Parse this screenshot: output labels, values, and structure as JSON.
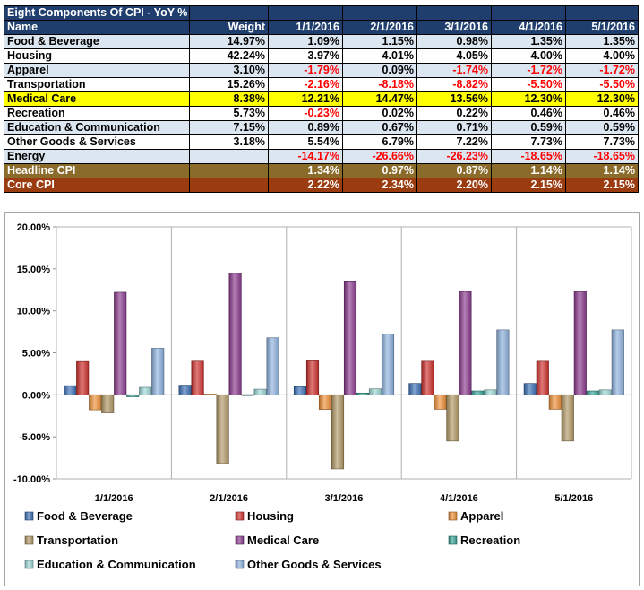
{
  "table": {
    "title": "Eight Components Of CPI - YoY % Change",
    "headers": [
      "Name",
      "Weight",
      "1/1/2016",
      "2/1/2016",
      "3/1/2016",
      "4/1/2016",
      "5/1/2016"
    ],
    "rows": [
      {
        "name": "Food & Beverage",
        "weight": "14.97%",
        "values": [
          "1.09%",
          "1.15%",
          "0.98%",
          "1.35%",
          "1.35%"
        ]
      },
      {
        "name": "Housing",
        "weight": "42.24%",
        "values": [
          "3.97%",
          "4.01%",
          "4.05%",
          "4.00%",
          "4.00%"
        ]
      },
      {
        "name": "Apparel",
        "weight": "3.10%",
        "values": [
          "-1.79%",
          "0.09%",
          "-1.74%",
          "-1.72%",
          "-1.72%"
        ]
      },
      {
        "name": "Transportation",
        "weight": "15.26%",
        "values": [
          "-2.16%",
          "-8.18%",
          "-8.82%",
          "-5.50%",
          "-5.50%"
        ]
      },
      {
        "name": "Medical Care",
        "weight": "8.38%",
        "values": [
          "12.21%",
          "14.47%",
          "13.56%",
          "12.30%",
          "12.30%"
        ],
        "highlight": true
      },
      {
        "name": "Recreation",
        "weight": "5.73%",
        "values": [
          "-0.23%",
          "0.02%",
          "0.22%",
          "0.46%",
          "0.46%"
        ]
      },
      {
        "name": "Education & Communication",
        "weight": "7.15%",
        "values": [
          "0.89%",
          "0.67%",
          "0.71%",
          "0.59%",
          "0.59%"
        ]
      },
      {
        "name": "Other Goods & Services",
        "weight": "3.18%",
        "values": [
          "5.54%",
          "6.79%",
          "7.22%",
          "7.73%",
          "7.73%"
        ]
      },
      {
        "name": "Energy",
        "weight": "",
        "values": [
          "-14.17%",
          "-26.66%",
          "-26.23%",
          "-18.65%",
          "-18.65%"
        ]
      }
    ],
    "summary": [
      {
        "name": "Headline CPI",
        "weight": "",
        "values": [
          "1.34%",
          "0.97%",
          "0.87%",
          "1.14%",
          "1.14%"
        ]
      },
      {
        "name": "Core CPI",
        "weight": "",
        "values": [
          "2.22%",
          "2.34%",
          "2.20%",
          "2.15%",
          "2.15%"
        ]
      }
    ]
  },
  "chart_data": {
    "type": "bar",
    "title": "",
    "xlabel": "",
    "ylabel": "",
    "categories": [
      "1/1/2016",
      "2/1/2016",
      "3/1/2016",
      "4/1/2016",
      "5/1/2016"
    ],
    "ylim": [
      -10,
      20
    ],
    "yticks": [
      -10,
      -5,
      0,
      5,
      10,
      15,
      20
    ],
    "ytick_labels": [
      "-10.00%",
      "-5.00%",
      "0.00%",
      "5.00%",
      "10.00%",
      "15.00%",
      "20.00%"
    ],
    "vertical_gridlines": true,
    "legend_position": "bottom",
    "series": [
      {
        "name": "Food & Beverage",
        "color": "#3d72b8",
        "values": [
          1.09,
          1.15,
          0.98,
          1.35,
          1.35
        ]
      },
      {
        "name": "Housing",
        "color": "#d0312d",
        "values": [
          3.97,
          4.01,
          4.05,
          4.0,
          4.0
        ]
      },
      {
        "name": "Apparel",
        "color": "#f0923a",
        "values": [
          -1.79,
          0.09,
          -1.74,
          -1.72,
          -1.72
        ]
      },
      {
        "name": "Transportation",
        "color": "#b49a68",
        "values": [
          -2.16,
          -8.18,
          -8.82,
          -5.5,
          -5.5
        ]
      },
      {
        "name": "Medical Care",
        "color": "#8b3c8f",
        "values": [
          12.21,
          14.47,
          13.56,
          12.3,
          12.3
        ]
      },
      {
        "name": "Recreation",
        "color": "#3aa59b",
        "values": [
          -0.23,
          0.02,
          0.22,
          0.46,
          0.46
        ]
      },
      {
        "name": "Education & Communication",
        "color": "#9fd8d6",
        "values": [
          0.89,
          0.67,
          0.71,
          0.59,
          0.59
        ]
      },
      {
        "name": "Other Goods & Services",
        "color": "#8fb3e0",
        "values": [
          5.54,
          6.79,
          7.22,
          7.73,
          7.73
        ]
      }
    ]
  }
}
